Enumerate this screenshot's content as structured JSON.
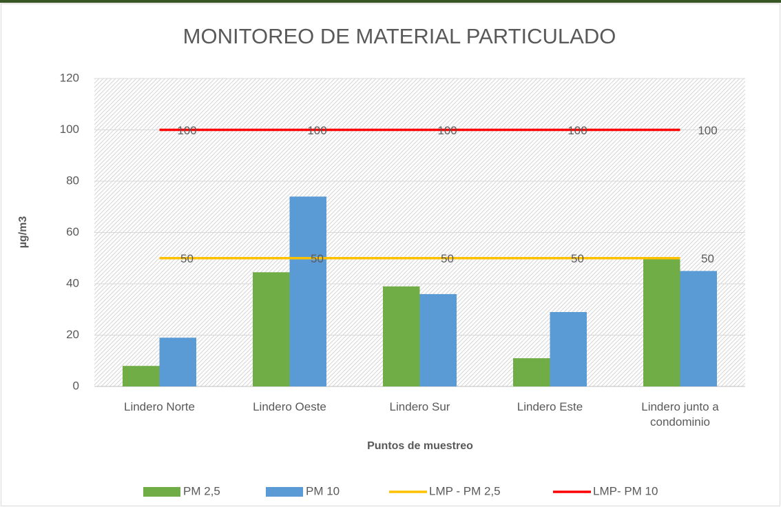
{
  "chart_data": {
    "type": "bar",
    "title": "MONITOREO DE  MATERIAL PARTICULADO",
    "x_label": "Puntos de muestreo",
    "y_label": "µg/m3",
    "categories": [
      "Lindero Norte",
      "Lindero Oeste",
      "Lindero Sur",
      "Lindero Este",
      "Lindero junto a condominio"
    ],
    "series": [
      {
        "name": "PM 2,5",
        "type": "bar",
        "color": "#70ad47",
        "values": [
          8,
          44.5,
          39,
          11,
          50
        ]
      },
      {
        "name": "PM 10",
        "type": "bar",
        "color": "#5b9bd5",
        "values": [
          19,
          74,
          36,
          29,
          45
        ]
      },
      {
        "name": "LMP - PM 2,5",
        "type": "line",
        "color": "#ffc000",
        "values": [
          50,
          50,
          50,
          50,
          50
        ]
      },
      {
        "name": "LMP- PM 10",
        "type": "line",
        "color": "#ff0000",
        "values": [
          100,
          100,
          100,
          100,
          100
        ]
      }
    ],
    "ylim": [
      0,
      120
    ],
    "yticks": [
      0,
      20,
      40,
      60,
      80,
      100,
      120
    ],
    "grid": true,
    "legend": "bottom"
  }
}
